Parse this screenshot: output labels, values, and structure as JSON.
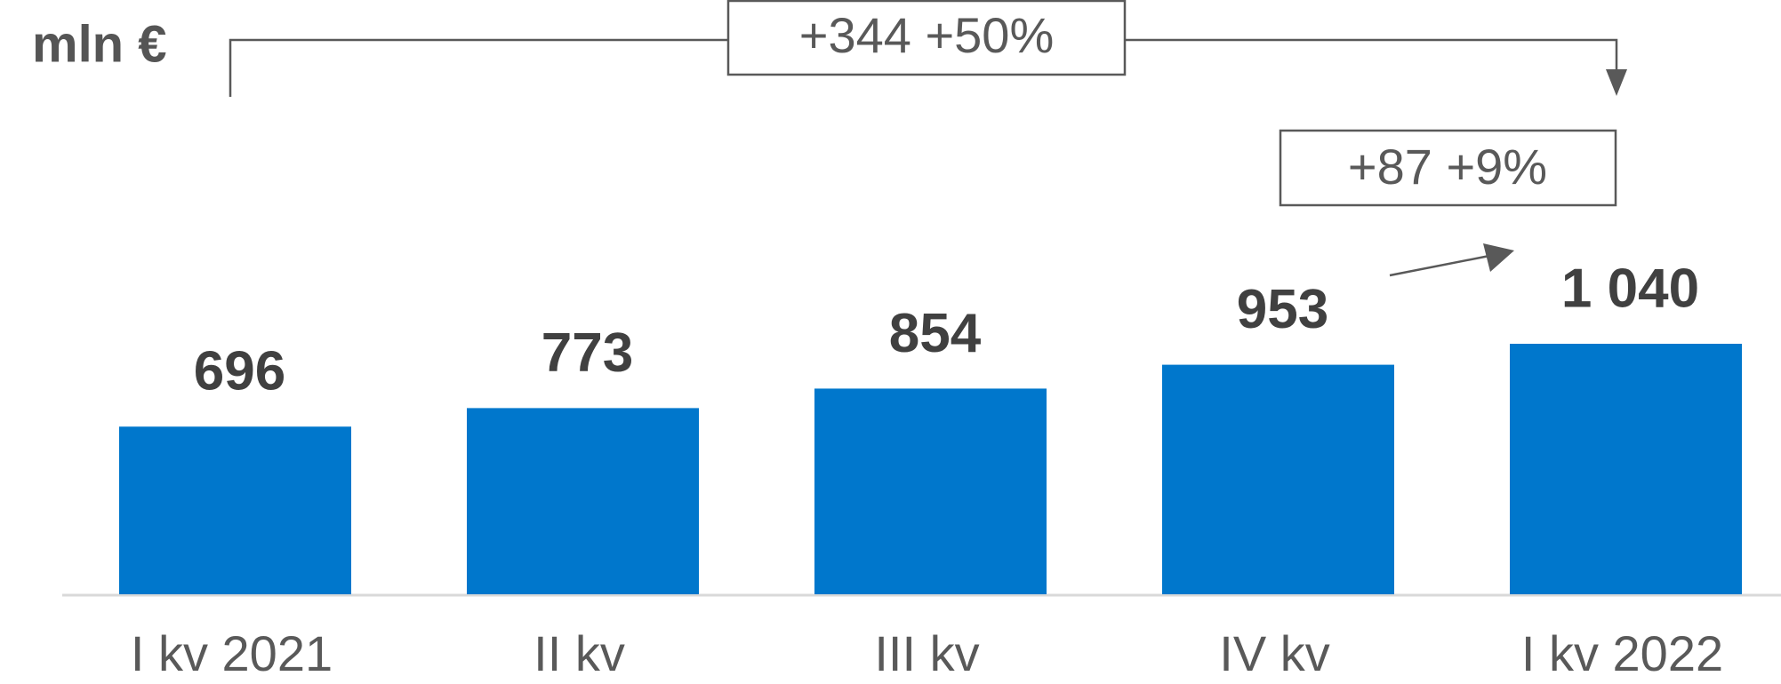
{
  "chart_data": {
    "type": "bar",
    "unit_label": "mln €",
    "categories": [
      "I kv 2021",
      "II kv",
      "III kv",
      "IV kv",
      "I kv 2022"
    ],
    "values": [
      696,
      773,
      854,
      953,
      1040
    ],
    "value_labels": [
      "696",
      "773",
      "854",
      "953",
      "1 040"
    ],
    "color": "#0077cc",
    "annotations": [
      "+344 +50%",
      "+87 +9%"
    ]
  }
}
